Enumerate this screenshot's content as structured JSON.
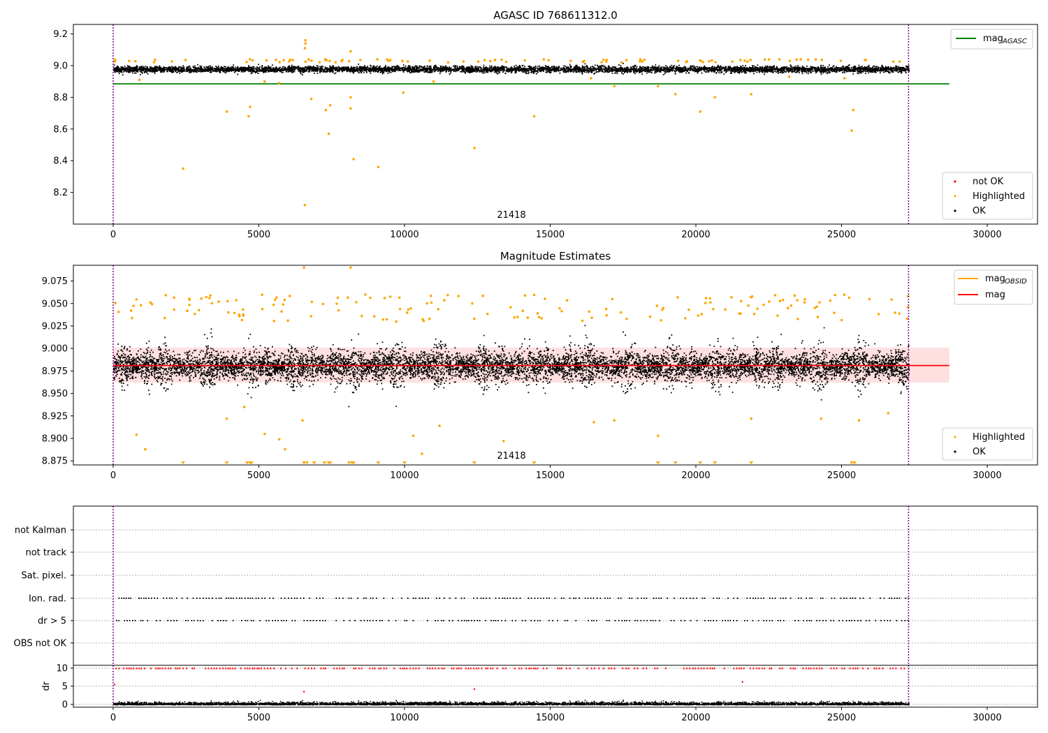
{
  "chart_data": [
    {
      "type": "scatter",
      "title": "AGASC ID 768611312.0",
      "xlim": [
        -1366,
        31726
      ],
      "ylim": [
        8.0,
        9.26
      ],
      "xticks": [
        0,
        5000,
        10000,
        15000,
        20000,
        25000,
        30000
      ],
      "yticks": [
        8.2,
        8.4,
        8.6,
        8.8,
        9.0,
        9.2
      ],
      "ytick_labels": [
        "8.2",
        "8.4",
        "8.6",
        "8.8",
        "9.0",
        "9.2"
      ],
      "annotation": "21418",
      "vlines": [
        0,
        27300
      ],
      "legend_top": [
        {
          "label": "mag",
          "sub": "AGASC",
          "color": "#008000"
        }
      ],
      "legend_bottom": [
        {
          "label": "not OK",
          "color": "#ff0000"
        },
        {
          "label": "Highlighted",
          "color": "#ffa500"
        },
        {
          "label": "OK",
          "color": "#000000"
        }
      ],
      "hlines": [
        {
          "name": "mag_AGASC",
          "y": 8.885,
          "xrange": [
            0,
            28700
          ],
          "color": "#008000"
        }
      ],
      "ok_band": {
        "x": [
          0,
          27300
        ],
        "center": 8.98,
        "spread": 0.022
      },
      "highlighted_points": [
        [
          2400,
          8.35
        ],
        [
          3900,
          8.71
        ],
        [
          4650,
          8.68
        ],
        [
          4700,
          8.74
        ],
        [
          6580,
          9.11
        ],
        [
          6600,
          9.14
        ],
        [
          6600,
          9.16
        ],
        [
          6580,
          8.12
        ],
        [
          6800,
          8.79
        ],
        [
          7300,
          8.72
        ],
        [
          7400,
          8.57
        ],
        [
          7450,
          8.75
        ],
        [
          8150,
          8.73
        ],
        [
          8150,
          8.8
        ],
        [
          8150,
          9.09
        ],
        [
          8250,
          8.41
        ],
        [
          9100,
          8.36
        ],
        [
          9960,
          8.83
        ],
        [
          12400,
          8.48
        ],
        [
          14450,
          8.68
        ],
        [
          17200,
          8.87
        ],
        [
          18700,
          8.87
        ],
        [
          19300,
          8.82
        ],
        [
          20150,
          8.71
        ],
        [
          20650,
          8.8
        ],
        [
          21900,
          8.82
        ],
        [
          25350,
          8.59
        ],
        [
          25400,
          8.72
        ],
        [
          900,
          8.91
        ],
        [
          5200,
          8.9
        ],
        [
          5700,
          8.89
        ],
        [
          11000,
          8.9
        ],
        [
          16400,
          8.92
        ],
        [
          23200,
          8.93
        ],
        [
          25100,
          8.92
        ]
      ]
    },
    {
      "type": "scatter",
      "title": "Magnitude Estimates",
      "xlim": [
        -1366,
        31726
      ],
      "ylim": [
        8.8705,
        9.0925
      ],
      "xticks": [
        0,
        5000,
        10000,
        15000,
        20000,
        25000,
        30000
      ],
      "yticks": [
        8.875,
        8.9,
        8.925,
        8.95,
        8.975,
        9.0,
        9.025,
        9.05,
        9.075
      ],
      "ytick_labels": [
        "8.875",
        "8.900",
        "8.925",
        "8.950",
        "8.975",
        "9.000",
        "9.025",
        "9.050",
        "9.075"
      ],
      "annotation": "21418",
      "vlines": [
        0,
        27300
      ],
      "legend_top": [
        {
          "label": "mag",
          "sub": "OBSID",
          "color": "#ffa500"
        },
        {
          "label": "mag",
          "sub": "",
          "color": "#ff0000"
        }
      ],
      "legend_bottom": [
        {
          "label": "Highlighted",
          "color": "#ffa500"
        },
        {
          "label": "OK",
          "color": "#000000"
        }
      ],
      "hlines": [
        {
          "name": "mag",
          "y": 8.981,
          "xrange": [
            0,
            28700
          ],
          "color": "#ff0000"
        }
      ],
      "band": {
        "y": [
          8.962,
          9.001
        ],
        "xrange": [
          0,
          28700
        ]
      },
      "ok_band": {
        "x": [
          0,
          27300
        ],
        "center": 8.981,
        "spread": 0.02
      },
      "highlighted_points": [
        [
          800,
          8.904
        ],
        [
          1100,
          8.888
        ],
        [
          3900,
          8.922
        ],
        [
          4500,
          8.935
        ],
        [
          5200,
          8.905
        ],
        [
          5700,
          8.899
        ],
        [
          5900,
          8.888
        ],
        [
          6500,
          8.92
        ],
        [
          10300,
          8.903
        ],
        [
          10600,
          8.883
        ],
        [
          11200,
          8.914
        ],
        [
          13400,
          8.897
        ],
        [
          16500,
          8.918
        ],
        [
          17200,
          8.92
        ],
        [
          18700,
          8.903
        ],
        [
          21900,
          8.922
        ],
        [
          24300,
          8.922
        ],
        [
          25600,
          8.92
        ],
        [
          26600,
          8.928
        ],
        [
          6550,
          9.09
        ],
        [
          8150,
          9.09
        ]
      ],
      "clipped_low_x": [
        2400,
        3900,
        4600,
        4700,
        4750,
        6550,
        6650,
        6900,
        7250,
        7400,
        7450,
        8100,
        8200,
        8250,
        9100,
        10000,
        12400,
        14450,
        18700,
        19300,
        20150,
        20650,
        21900,
        25350,
        25450
      ]
    },
    {
      "type": "scatter",
      "title": "",
      "xlim": [
        -1366,
        31726
      ],
      "xticks": [
        0,
        5000,
        10000,
        15000,
        20000,
        25000,
        30000
      ],
      "flag_labels": [
        "OBS not OK",
        "dr > 5",
        "Ion. rad.",
        "Sat. pixel.",
        "not track",
        "not Kalman"
      ],
      "flag_rows_with_points": [
        "dr > 5",
        "Ion. rad."
      ],
      "dr": {
        "ylabel": "dr",
        "yticks": [
          0,
          5,
          10
        ],
        "ylim": [
          -0.5,
          10.5
        ],
        "clip": 10
      }
    }
  ]
}
